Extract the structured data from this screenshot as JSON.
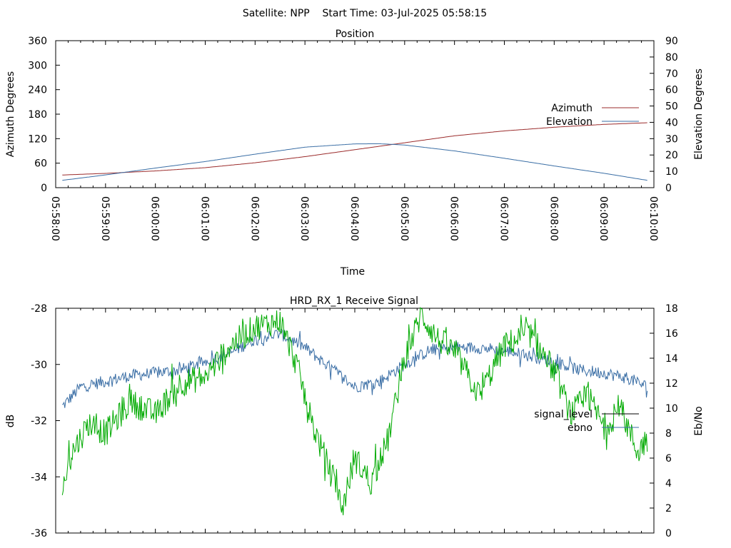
{
  "header": {
    "title": "Satellite: NPP    Start Time: 03-Jul-2025 05:58:15"
  },
  "colors": {
    "azimuth": "#9b2b2b",
    "elevation": "#3a6ea5",
    "signal_level": "#3a6ea5",
    "ebno": "#00aa00",
    "legend_signal_level_key": "#000000",
    "legend_ebno_key": "#3a6ea5"
  },
  "chart_data": [
    {
      "type": "line",
      "title": "Position",
      "xlabel": "Time",
      "ylabel": "Azimuth Degrees",
      "y2label": "Elevation Degrees",
      "xlim": [
        "05:58:00",
        "06:10:00"
      ],
      "ylim": [
        0,
        360
      ],
      "y2lim": [
        0,
        90
      ],
      "xticks": [
        "05:58:00",
        "05:59:00",
        "06:00:00",
        "06:01:00",
        "06:02:00",
        "06:03:00",
        "06:04:00",
        "06:05:00",
        "06:06:00",
        "06:07:00",
        "06:08:00",
        "06:09:00",
        "06:10:00"
      ],
      "yticks": [
        "0",
        "60",
        "120",
        "180",
        "240",
        "300",
        "360"
      ],
      "y2ticks": [
        "0",
        "10",
        "20",
        "30",
        "40",
        "50",
        "60",
        "70",
        "80",
        "90"
      ],
      "legend_position": "right",
      "series": [
        {
          "name": "Azimuth",
          "axis": "left",
          "x": [
            "05:58:08",
            "05:59:00",
            "06:00:00",
            "06:01:00",
            "06:02:00",
            "06:03:00",
            "06:04:00",
            "06:05:00",
            "06:06:00",
            "06:07:00",
            "06:08:00",
            "06:09:00",
            "06:09:52"
          ],
          "y": [
            31,
            35,
            41,
            49,
            61,
            76,
            93,
            110,
            127,
            139,
            148,
            155,
            159
          ]
        },
        {
          "name": "Elevation",
          "axis": "right",
          "x": [
            "05:58:08",
            "05:59:00",
            "06:00:00",
            "06:01:00",
            "06:02:00",
            "06:03:00",
            "06:04:00",
            "06:04:30",
            "06:05:00",
            "06:06:00",
            "06:07:00",
            "06:08:00",
            "06:09:00",
            "06:09:52"
          ],
          "y": [
            4.5,
            7.8,
            12,
            16,
            20.5,
            24.8,
            26.8,
            26.9,
            26.1,
            22.5,
            18,
            13.3,
            8.8,
            4.5
          ]
        }
      ]
    },
    {
      "type": "line",
      "title": "HRD_RX_1 Receive Signal",
      "ylabel": "dB",
      "y2label": "Eb/No",
      "xlim": [
        "05:58:00",
        "06:10:00"
      ],
      "ylim": [
        -36,
        -28
      ],
      "y2lim": [
        0,
        18
      ],
      "yticks": [
        "-36",
        "-34",
        "-32",
        "-30",
        "-28"
      ],
      "y2ticks": [
        "0",
        "2",
        "4",
        "6",
        "8",
        "10",
        "12",
        "14",
        "16",
        "18"
      ],
      "legend_position": "right",
      "series": [
        {
          "name": "signal_level",
          "axis": "left",
          "x": [
            "05:58:08",
            "05:58:30",
            "05:59:00",
            "05:59:30",
            "06:00:00",
            "06:00:30",
            "06:01:00",
            "06:01:30",
            "06:02:00",
            "06:02:30",
            "06:03:00",
            "06:03:30",
            "06:04:00",
            "06:04:30",
            "06:05:00",
            "06:05:30",
            "06:06:00",
            "06:06:30",
            "06:07:00",
            "06:07:30",
            "06:08:00",
            "06:08:30",
            "06:09:00",
            "06:09:30",
            "06:09:52"
          ],
          "y": [
            -31.5,
            -30.8,
            -30.6,
            -30.4,
            -30.3,
            -30.2,
            -29.9,
            -29.6,
            -29.1,
            -28.9,
            -29.4,
            -30.1,
            -30.8,
            -30.6,
            -30.0,
            -29.5,
            -29.4,
            -29.4,
            -29.5,
            -29.7,
            -29.9,
            -30.2,
            -30.3,
            -30.5,
            -30.8
          ]
        },
        {
          "name": "ebno",
          "axis": "right",
          "x": [
            "05:58:08",
            "05:58:20",
            "05:58:40",
            "05:59:00",
            "05:59:30",
            "06:00:00",
            "06:00:30",
            "06:01:00",
            "06:01:30",
            "06:02:00",
            "06:02:30",
            "06:02:50",
            "06:03:10",
            "06:03:30",
            "06:03:45",
            "06:04:00",
            "06:04:20",
            "06:04:40",
            "06:05:00",
            "06:05:20",
            "06:05:40",
            "06:06:00",
            "06:06:30",
            "06:07:00",
            "06:07:30",
            "06:08:00",
            "06:08:20",
            "06:08:40",
            "06:09:00",
            "06:09:20",
            "06:09:40",
            "06:09:52"
          ],
          "y": [
            3.5,
            6.5,
            8.8,
            8.0,
            10.5,
            9.5,
            12.0,
            12.5,
            15.0,
            16.5,
            17.0,
            13.5,
            8.5,
            5.0,
            2.0,
            6.0,
            4.0,
            7.5,
            14.0,
            17.5,
            15.5,
            14.5,
            11.0,
            15.0,
            16.0,
            13.0,
            9.5,
            11.0,
            8.5,
            10.0,
            6.5,
            7.5
          ]
        }
      ]
    }
  ]
}
